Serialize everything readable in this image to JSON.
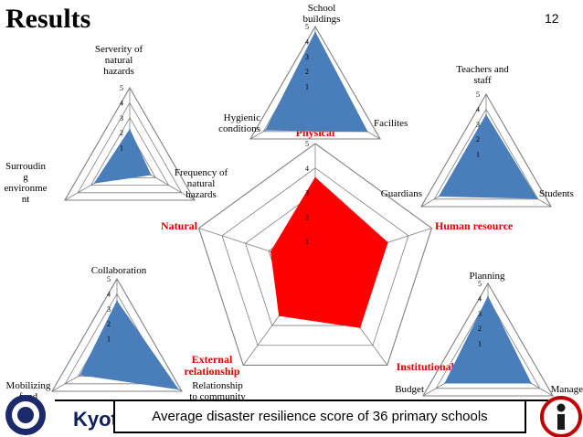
{
  "slide": {
    "title": "Results",
    "page_number": "12",
    "footer_text": "Kyot",
    "caption": "Average disaster resilience score of 36 primary schools"
  },
  "colors": {
    "main_fill": "#ff0000",
    "sub_fill": "#4a7ebb",
    "grid": "#000000",
    "red_label": "#e00000"
  },
  "chart_data": [
    {
      "id": "overall",
      "type": "radar",
      "axes": [
        "Physical",
        "Human resource",
        "Institutional",
        "External relationship",
        "Natural"
      ],
      "values": [
        3.6,
        3.1,
        3.1,
        2.5,
        1.9
      ],
      "rlim": [
        0,
        5
      ],
      "ticks": [
        "1",
        "2",
        "3",
        "4",
        "5"
      ],
      "label_color": "red"
    },
    {
      "id": "physical",
      "type": "radar",
      "axes": [
        "School buildings",
        "Facilites",
        "Hygienic conditions"
      ],
      "values": [
        4.6,
        4.0,
        3.8
      ],
      "rlim": [
        0,
        5
      ],
      "ticks": [
        "1",
        "2",
        "3",
        "4",
        "5"
      ]
    },
    {
      "id": "natural",
      "type": "radar",
      "axes": [
        "Serverity of natural hazards",
        "Frequency of natural hazards",
        "Surroudin g environme nt"
      ],
      "values": [
        2.2,
        1.6,
        2.7
      ],
      "rlim": [
        0,
        5
      ],
      "ticks": [
        "1",
        "2",
        "3",
        "4",
        "5"
      ]
    },
    {
      "id": "human_resource",
      "type": "radar",
      "axes": [
        "Teachers and staff",
        "Students",
        "Guardians"
      ],
      "values": [
        3.6,
        3.9,
        3.6
      ],
      "rlim": [
        0,
        5
      ],
      "ticks": [
        "1",
        "2",
        "3",
        "4",
        "5"
      ]
    },
    {
      "id": "external_relationship",
      "type": "radar",
      "axes": [
        "Collaboration",
        "Relationship to community",
        "Mobilizing fund"
      ],
      "values": [
        3.5,
        4.7,
        2.8
      ],
      "rlim": [
        0,
        5
      ],
      "ticks": [
        "1",
        "2",
        "3",
        "4",
        "5"
      ]
    },
    {
      "id": "institutional",
      "type": "radar",
      "axes": [
        "Planning",
        "Manage",
        "Budget"
      ],
      "values": [
        4.1,
        3.3,
        3.3
      ],
      "rlim": [
        0,
        5
      ],
      "ticks": [
        "1",
        "2",
        "3",
        "4",
        "5"
      ]
    }
  ]
}
